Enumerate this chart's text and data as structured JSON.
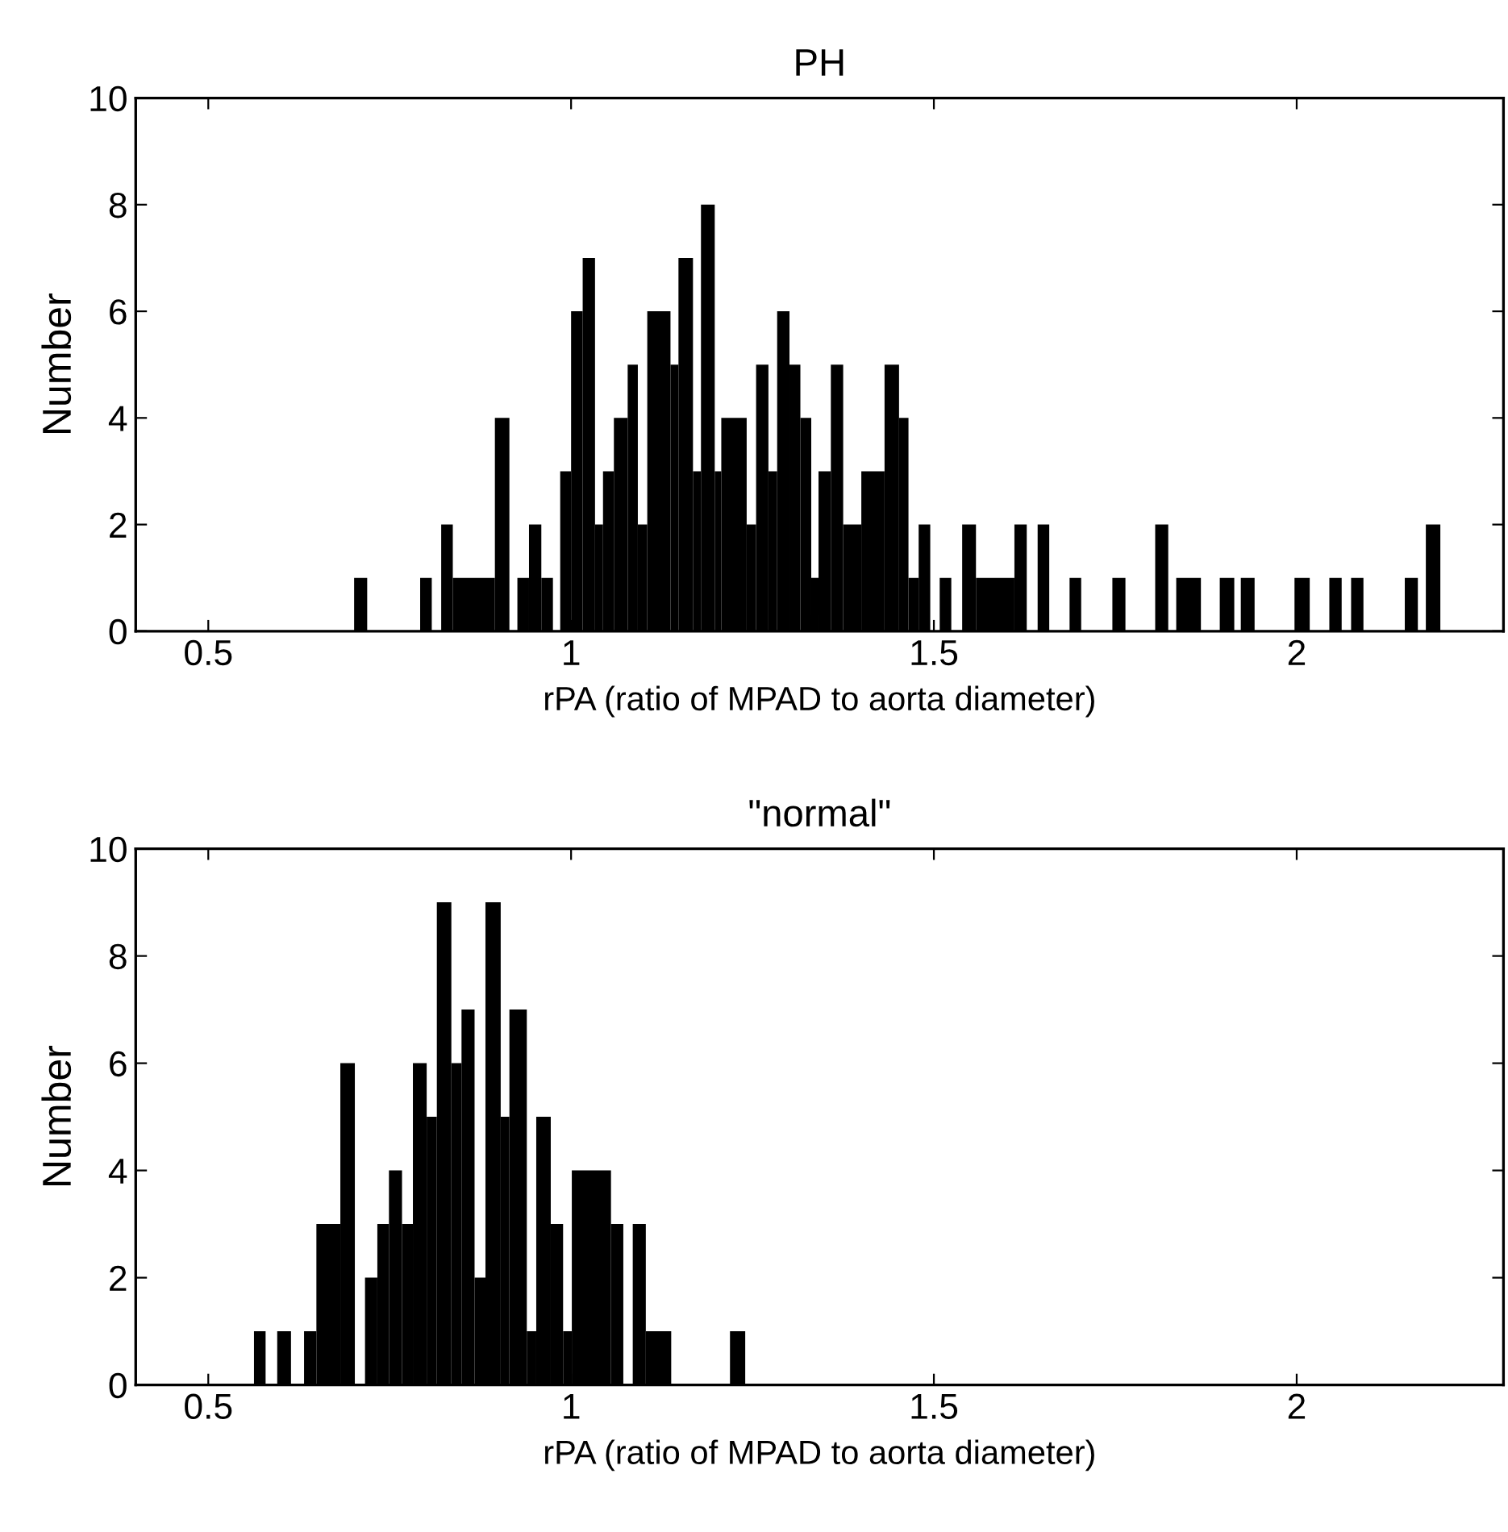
{
  "chart_data": [
    {
      "type": "histogram",
      "title": "PH",
      "xlabel": "rPA (ratio of MPAD to aorta diameter)",
      "ylabel": "Number",
      "color": "#000000",
      "bins": [
        0.701,
        0.719,
        0.792,
        0.808,
        0.821,
        0.837,
        0.895,
        0.915,
        0.926,
        0.942,
        0.959,
        0.975,
        0.985,
        1.0,
        1.016,
        1.033,
        1.044,
        1.059,
        1.078,
        1.092,
        1.105,
        1.137,
        1.148,
        1.168,
        1.179,
        1.198,
        1.207,
        1.242,
        1.255,
        1.272,
        1.284,
        1.301,
        1.316,
        1.331,
        1.341,
        1.358,
        1.375,
        1.4,
        1.432,
        1.452,
        1.465,
        1.479,
        1.495,
        1.508,
        1.524,
        1.539,
        1.558,
        1.611,
        1.628,
        1.643,
        1.659,
        1.687,
        1.703,
        1.746,
        1.764,
        1.805,
        1.823,
        1.834,
        1.868,
        1.894,
        1.914,
        1.923,
        1.942,
        1.997,
        2.018,
        2.045,
        2.062,
        2.075,
        2.092,
        2.149,
        2.167,
        2.178,
        2.198
      ],
      "values": [
        1,
        0,
        1,
        0,
        2,
        1,
        4,
        0,
        1,
        2,
        1,
        0,
        3,
        6,
        7,
        2,
        3,
        4,
        5,
        2,
        6,
        5,
        7,
        3,
        8,
        3,
        4,
        2,
        5,
        3,
        6,
        5,
        4,
        1,
        3,
        5,
        2,
        3,
        5,
        4,
        1,
        2,
        0,
        1,
        0,
        2,
        1,
        2,
        0,
        2,
        0,
        1,
        0,
        1,
        0,
        2,
        0,
        1,
        0,
        1,
        0,
        1,
        0,
        1,
        0,
        1,
        0,
        1,
        0,
        1,
        0,
        2
      ],
      "xlim": [
        0.4,
        2.285
      ],
      "xticks": [
        0.5,
        1,
        1.5,
        2
      ],
      "ylim": [
        0,
        10
      ],
      "yticks": [
        0,
        2,
        4,
        6,
        8,
        10
      ],
      "grid": false
    },
    {
      "type": "histogram",
      "title": "\"normal\"",
      "xlabel": "rPA (ratio of MPAD to aorta diameter)",
      "ylabel": "Number",
      "color": "#000000",
      "bins": [
        0.563,
        0.579,
        0.595,
        0.614,
        0.632,
        0.649,
        0.682,
        0.702,
        0.716,
        0.733,
        0.749,
        0.767,
        0.782,
        0.801,
        0.815,
        0.835,
        0.849,
        0.867,
        0.882,
        0.903,
        0.915,
        0.939,
        0.952,
        0.972,
        0.989,
        1.001,
        1.055,
        1.072,
        1.085,
        1.103,
        1.138,
        1.219,
        1.24
      ],
      "values": [
        1,
        0,
        1,
        0,
        1,
        3,
        6,
        0,
        2,
        3,
        4,
        3,
        6,
        5,
        9,
        6,
        7,
        2,
        9,
        5,
        7,
        1,
        5,
        3,
        1,
        4,
        3,
        0,
        3,
        1,
        0,
        1
      ],
      "xlim": [
        0.4,
        2.285
      ],
      "xticks": [
        0.5,
        1,
        1.5,
        2
      ],
      "ylim": [
        0,
        10
      ],
      "yticks": [
        0,
        2,
        4,
        6,
        8,
        10
      ],
      "grid": false
    }
  ]
}
